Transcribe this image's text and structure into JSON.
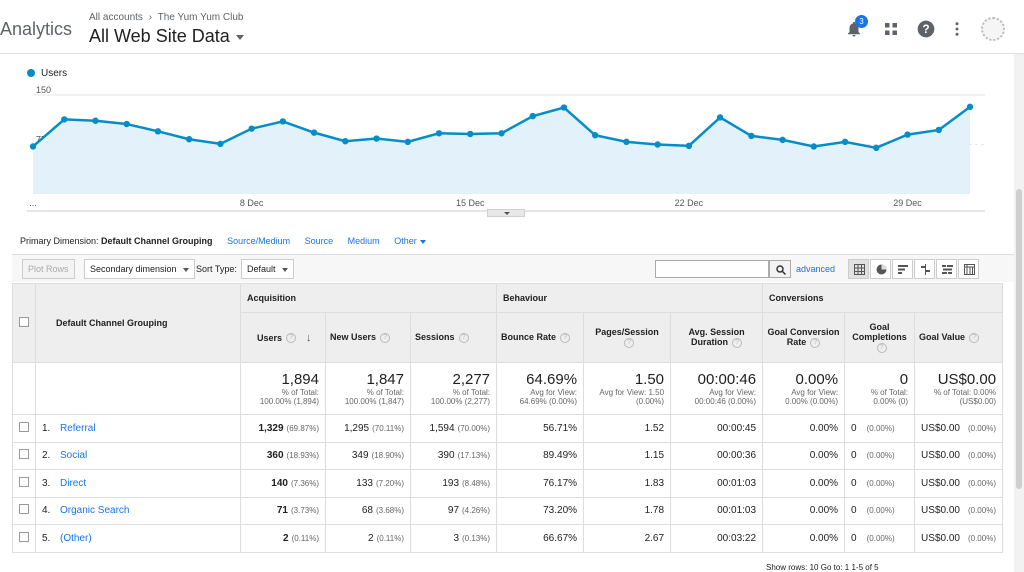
{
  "header": {
    "app_name": "Analytics",
    "breadcrumb": [
      "All accounts",
      "The Yum Yum Club"
    ],
    "breadcrumb_separator": "›",
    "view_name": "All Web Site Data",
    "notification_count": "3",
    "icons": [
      "bell-icon",
      "apps-icon",
      "help-icon",
      "more-vert-icon",
      "avatar"
    ]
  },
  "chart_data": {
    "type": "area",
    "series": [
      {
        "name": "Users",
        "color": "#058dc7",
        "values": [
          72,
          113,
          111,
          106,
          95,
          83,
          76,
          99,
          110,
          93,
          80,
          84,
          79,
          92,
          91,
          92,
          118,
          131,
          89,
          79,
          75,
          73,
          116,
          88,
          82,
          72,
          79,
          70,
          90,
          97,
          132
        ]
      }
    ],
    "x_tick_labels": [
      "...",
      "8 Dec",
      "15 Dec",
      "22 Dec",
      "29 Dec"
    ],
    "y_tick_labels": [
      "150",
      "75"
    ],
    "ylim": [
      0,
      150
    ],
    "legend": "top-left",
    "grid": true
  },
  "dimension": {
    "label": "Primary Dimension:",
    "active": "Default Channel Grouping",
    "options": [
      "Source/Medium",
      "Source",
      "Medium",
      "Other"
    ]
  },
  "toolbar": {
    "plot_rows": "Plot Rows",
    "secondary_dimension": "Secondary dimension",
    "sort_type_label": "Sort Type:",
    "sort_type_value": "Default",
    "search_value": "",
    "advanced": "advanced"
  },
  "table": {
    "group_headers": [
      "Acquisition",
      "Behaviour",
      "Conversions"
    ],
    "dimension_header": "Default Channel Grouping",
    "columns": [
      "Users",
      "New Users",
      "Sessions",
      "Bounce Rate",
      "Pages/Session",
      "Avg. Session Duration",
      "Goal Conversion Rate",
      "Goal Completions",
      "Goal Value"
    ],
    "totals": [
      {
        "value": "1,894",
        "sub1": "% of Total:",
        "sub2": "100.00% (1,894)"
      },
      {
        "value": "1,847",
        "sub1": "% of Total:",
        "sub2": "100.00% (1,847)"
      },
      {
        "value": "2,277",
        "sub1": "% of Total:",
        "sub2": "100.00% (2,277)"
      },
      {
        "value": "64.69%",
        "sub1": "Avg for View:",
        "sub2": "64.69% (0.00%)"
      },
      {
        "value": "1.50",
        "sub1": "Avg for View: 1.50",
        "sub2": "(0.00%)"
      },
      {
        "value": "00:00:46",
        "sub1": "Avg for View:",
        "sub2": "00:00:46 (0.00%)"
      },
      {
        "value": "0.00%",
        "sub1": "Avg for View:",
        "sub2": "0.00% (0.00%)"
      },
      {
        "value": "0",
        "sub1": "% of Total:",
        "sub2": "0.00% (0)"
      },
      {
        "value": "US$0.00",
        "sub1": "% of Total: 0.00%",
        "sub2": "(US$0.00)"
      }
    ],
    "rows": [
      {
        "idx": "1.",
        "name": "Referral",
        "users": "1,329",
        "users_pct": "(69.87%)",
        "new_users": "1,295",
        "new_users_pct": "(70.11%)",
        "sessions": "1,594",
        "sessions_pct": "(70.00%)",
        "bounce": "56.71%",
        "pages": "1.52",
        "duration": "00:00:45",
        "conv_rate": "0.00%",
        "completions": "0",
        "completions_pct": "(0.00%)",
        "value": "US$0.00",
        "value_pct": "(0.00%)"
      },
      {
        "idx": "2.",
        "name": "Social",
        "users": "360",
        "users_pct": "(18.93%)",
        "new_users": "349",
        "new_users_pct": "(18.90%)",
        "sessions": "390",
        "sessions_pct": "(17.13%)",
        "bounce": "89.49%",
        "pages": "1.15",
        "duration": "00:00:36",
        "conv_rate": "0.00%",
        "completions": "0",
        "completions_pct": "(0.00%)",
        "value": "US$0.00",
        "value_pct": "(0.00%)"
      },
      {
        "idx": "3.",
        "name": "Direct",
        "users": "140",
        "users_pct": "(7.36%)",
        "new_users": "133",
        "new_users_pct": "(7.20%)",
        "sessions": "193",
        "sessions_pct": "(8.48%)",
        "bounce": "76.17%",
        "pages": "1.83",
        "duration": "00:01:03",
        "conv_rate": "0.00%",
        "completions": "0",
        "completions_pct": "(0.00%)",
        "value": "US$0.00",
        "value_pct": "(0.00%)"
      },
      {
        "idx": "4.",
        "name": "Organic Search",
        "users": "71",
        "users_pct": "(3.73%)",
        "new_users": "68",
        "new_users_pct": "(3.68%)",
        "sessions": "97",
        "sessions_pct": "(4.26%)",
        "bounce": "73.20%",
        "pages": "1.78",
        "duration": "00:01:03",
        "conv_rate": "0.00%",
        "completions": "0",
        "completions_pct": "(0.00%)",
        "value": "US$0.00",
        "value_pct": "(0.00%)"
      },
      {
        "idx": "5.",
        "name": "(Other)",
        "users": "2",
        "users_pct": "(0.11%)",
        "new_users": "2",
        "new_users_pct": "(0.11%)",
        "sessions": "3",
        "sessions_pct": "(0.13%)",
        "bounce": "66.67%",
        "pages": "2.67",
        "duration": "00:03:22",
        "conv_rate": "0.00%",
        "completions": "0",
        "completions_pct": "(0.00%)",
        "value": "US$0.00",
        "value_pct": "(0.00%)"
      }
    ]
  },
  "pager": {
    "show_rows": "Show rows:",
    "rows_value": "10",
    "goto": "Go to:",
    "goto_value": "1",
    "range": "1-5 of 5"
  }
}
